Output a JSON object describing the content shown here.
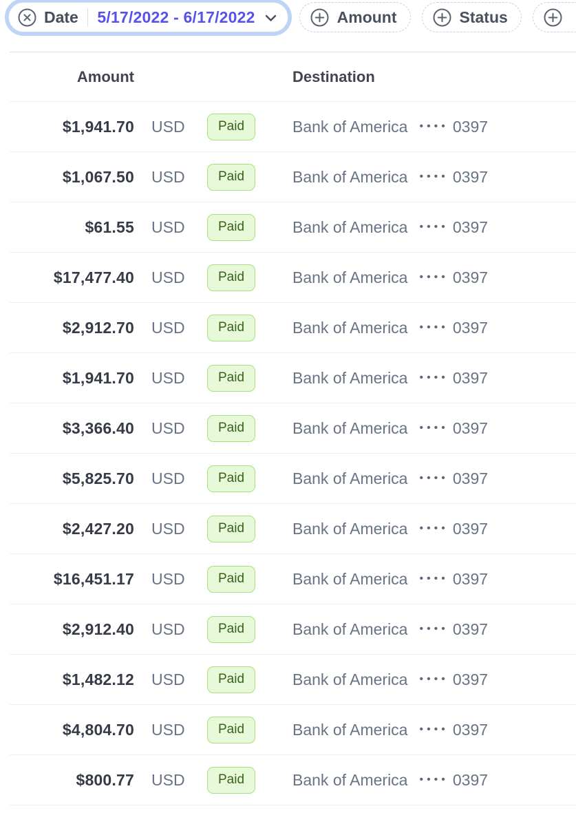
{
  "filter_bar": {
    "date_filter": {
      "label": "Date",
      "value": "5/17/2022 - 6/17/2022"
    },
    "add_filters": [
      {
        "label": "Amount"
      },
      {
        "label": "Status"
      },
      {
        "label": ""
      }
    ]
  },
  "table": {
    "columns": {
      "amount": "Amount",
      "destination": "Destination"
    },
    "account_mask": "••••",
    "rows": [
      {
        "amount": "$1,941.70",
        "currency": "USD",
        "status": "Paid",
        "bank": "Bank of America",
        "dots": "••••",
        "last4": "0397"
      },
      {
        "amount": "$1,067.50",
        "currency": "USD",
        "status": "Paid",
        "bank": "Bank of America",
        "dots": "••••",
        "last4": "0397"
      },
      {
        "amount": "$61.55",
        "currency": "USD",
        "status": "Paid",
        "bank": "Bank of America",
        "dots": "••••",
        "last4": "0397"
      },
      {
        "amount": "$17,477.40",
        "currency": "USD",
        "status": "Paid",
        "bank": "Bank of America",
        "dots": "••••",
        "last4": "0397"
      },
      {
        "amount": "$2,912.70",
        "currency": "USD",
        "status": "Paid",
        "bank": "Bank of America",
        "dots": "••••",
        "last4": "0397"
      },
      {
        "amount": "$1,941.70",
        "currency": "USD",
        "status": "Paid",
        "bank": "Bank of America",
        "dots": "••••",
        "last4": "0397"
      },
      {
        "amount": "$3,366.40",
        "currency": "USD",
        "status": "Paid",
        "bank": "Bank of America",
        "dots": "••••",
        "last4": "0397"
      },
      {
        "amount": "$5,825.70",
        "currency": "USD",
        "status": "Paid",
        "bank": "Bank of America",
        "dots": "••••",
        "last4": "0397"
      },
      {
        "amount": "$2,427.20",
        "currency": "USD",
        "status": "Paid",
        "bank": "Bank of America",
        "dots": "••••",
        "last4": "0397"
      },
      {
        "amount": "$16,451.17",
        "currency": "USD",
        "status": "Paid",
        "bank": "Bank of America",
        "dots": "••••",
        "last4": "0397"
      },
      {
        "amount": "$2,912.40",
        "currency": "USD",
        "status": "Paid",
        "bank": "Bank of America",
        "dots": "••••",
        "last4": "0397"
      },
      {
        "amount": "$1,482.12",
        "currency": "USD",
        "status": "Paid",
        "bank": "Bank of America",
        "dots": "••••",
        "last4": "0397"
      },
      {
        "amount": "$4,804.70",
        "currency": "USD",
        "status": "Paid",
        "bank": "Bank of America",
        "dots": "••••",
        "last4": "0397"
      },
      {
        "amount": "$800.77",
        "currency": "USD",
        "status": "Paid",
        "bank": "Bank of America",
        "dots": "••••",
        "last4": "0397"
      }
    ]
  },
  "colors": {
    "accent_link": "#5851ea",
    "focus_ring": "#bdd3f9",
    "badge_bg": "#e7f9d9",
    "badge_border": "#a7e17e",
    "badge_text": "#38621a",
    "text_primary": "#414552",
    "text_secondary": "#687385",
    "divider": "#edf0f3"
  }
}
